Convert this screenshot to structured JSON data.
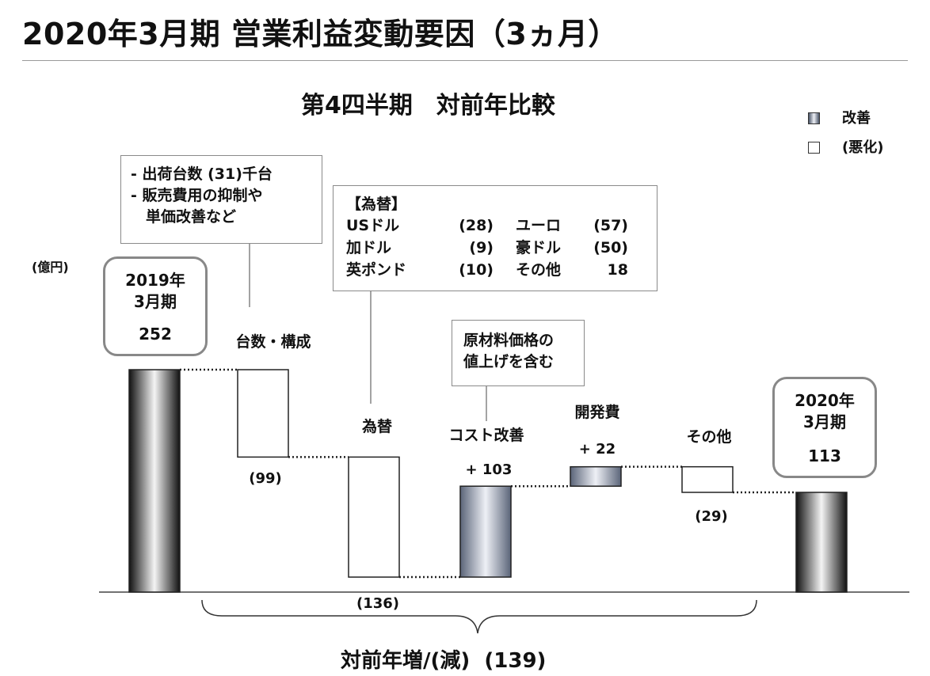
{
  "title": "2020年3月期 営業利益変動要因（3ヵ月）",
  "subtitle": "第4四半期　対前年比較",
  "legend": {
    "improve": "改善",
    "worsen": "(悪化)"
  },
  "unit": "(億円)",
  "notes": {
    "volume": [
      "- 出荷台数 (31)千台",
      "- 販売費用の抑制や",
      "　単価改善など"
    ],
    "fx_title": "【為替】",
    "fx_rows": [
      [
        "USドル",
        "(28)",
        "ユーロ",
        "(57)"
      ],
      [
        "加ドル",
        "(9)",
        "豪ドル",
        "(50)"
      ],
      [
        "英ポンド",
        "(10)",
        "その他",
        "18"
      ]
    ],
    "cost": [
      "原材料価格の",
      "値上げを含む"
    ]
  },
  "start_box": {
    "line1": "2019年",
    "line2": "3月期",
    "value": "252"
  },
  "end_box": {
    "line1": "2020年",
    "line2": "3月期",
    "value": "113"
  },
  "bottom": {
    "label": "対前年増/(減)",
    "value": "(139)"
  },
  "colors": {
    "improve": "#8a93a6",
    "total": "#111111",
    "worsen": "#ffffff",
    "border": "#888888"
  },
  "chart_data": {
    "type": "bar",
    "subtype": "waterfall",
    "unit": "億円",
    "categories": [
      "2019年3月期",
      "台数・構成",
      "為替",
      "コスト改善",
      "開発費",
      "その他",
      "2020年3月期"
    ],
    "values": [
      252,
      -99,
      -136,
      103,
      22,
      -29,
      113
    ],
    "value_labels": [
      "",
      "(99)",
      "(136)",
      "+ 103",
      "+ 22",
      "(29)",
      ""
    ],
    "category_labels": [
      "",
      "台数・構成",
      "為替",
      "コスト改善",
      "開発費",
      "その他",
      ""
    ],
    "kinds": [
      "total",
      "delta",
      "delta",
      "delta",
      "delta",
      "delta",
      "total"
    ],
    "total_change": -139
  }
}
